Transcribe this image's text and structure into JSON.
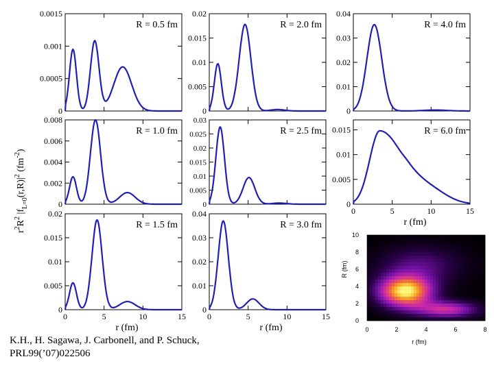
{
  "citation": {
    "line1": "K.H., H. Sagawa, J. Carbonell, and P. Schuck,",
    "line2": "PRL99(’07)022506"
  },
  "shared_axes": {
    "ylabel_html": "r²R² |f_L=0(r,R)|² (fm⁻²)",
    "ylabel_parts": [
      "r",
      "2",
      "R",
      "2",
      " |f",
      "L=0",
      "(r,R)|",
      "2",
      " (fm",
      "-2",
      ")"
    ],
    "xlabel": "r   (fm)",
    "xticks": [
      "0",
      "5",
      "10",
      "15"
    ]
  },
  "chart_data": [
    {
      "type": "line",
      "id": "R0.5",
      "label": "R = 0.5 fm",
      "xlim": [
        0,
        15
      ],
      "ylim": [
        0,
        0.0015
      ],
      "yticks": [
        "0",
        "0.0005",
        "0.001",
        "0.0015"
      ],
      "series": [
        {
          "name": "r2R2f2",
          "peaks": [
            [
              1.0,
              0.00095,
              0.45
            ],
            [
              3.8,
              0.00108,
              0.55
            ],
            [
              7.4,
              0.00068,
              1.15
            ]
          ]
        }
      ],
      "color": "#1f1fb4"
    },
    {
      "type": "line",
      "id": "R2.0",
      "label": "R = 2.0 fm",
      "xlim": [
        0,
        15
      ],
      "ylim": [
        0,
        0.02
      ],
      "yticks": [
        "0",
        "0.005",
        "0.01",
        "0.015",
        "0.02"
      ],
      "series": [
        {
          "name": "r2R2f2",
          "peaks": [
            [
              1.1,
              0.0097,
              0.45
            ],
            [
              4.6,
              0.0178,
              0.75
            ],
            [
              8.8,
              0.0003,
              0.9
            ]
          ]
        }
      ],
      "color": "#1f1fb4"
    },
    {
      "type": "line",
      "id": "R4.0",
      "label": "R = 4.0 fm",
      "xlim": [
        0,
        15
      ],
      "ylim": [
        0,
        0.04
      ],
      "yticks": [
        "0",
        "0.01",
        "0.02",
        "0.03",
        "0.04"
      ],
      "series": [
        {
          "name": "r2R2f2",
          "peaks": [
            [
              2.7,
              0.0355,
              0.95
            ],
            [
              10.5,
              0.0004,
              1.5
            ]
          ]
        }
      ],
      "color": "#1f1fb4"
    },
    {
      "type": "line",
      "id": "R1.0",
      "label": "R = 1.0 fm",
      "xlim": [
        0,
        15
      ],
      "ylim": [
        0,
        0.008
      ],
      "yticks": [
        "0",
        "0.002",
        "0.004",
        "0.006",
        "0.008"
      ],
      "series": [
        {
          "name": "r2R2f2",
          "peaks": [
            [
              1.0,
              0.0026,
              0.45
            ],
            [
              3.9,
              0.008,
              0.65
            ],
            [
              8.0,
              0.0011,
              1.0
            ]
          ]
        }
      ],
      "color": "#1f1fb4"
    },
    {
      "type": "line",
      "id": "R2.5",
      "label": "R = 2.5 fm",
      "xlim": [
        0,
        15
      ],
      "ylim": [
        0,
        0.03
      ],
      "yticks": [
        "0",
        "0.005",
        "0.01",
        "0.015",
        "0.02",
        "0.025",
        "0.03"
      ],
      "series": [
        {
          "name": "r2R2f2",
          "peaks": [
            [
              1.4,
              0.0275,
              0.55
            ],
            [
              5.1,
              0.0095,
              0.75
            ],
            [
              9.0,
              0.0004,
              0.9
            ]
          ]
        }
      ],
      "color": "#1f1fb4"
    },
    {
      "type": "line",
      "id": "R6.0",
      "label": "R = 6.0 fm",
      "xlim": [
        0,
        15
      ],
      "ylim": [
        0,
        0.017
      ],
      "yticks": [
        "0",
        "0.005",
        "0.01",
        "0.015"
      ],
      "series": [
        {
          "name": "r2R2f2",
          "skewed": {
            "peak_x": 3.4,
            "peak_y": 0.0148,
            "rise": 1.3,
            "fall": 3.2
          }
        }
      ],
      "color": "#1f1fb4"
    },
    {
      "type": "line",
      "id": "R1.5",
      "label": "R = 1.5 fm",
      "xlim": [
        0,
        15
      ],
      "ylim": [
        0,
        0.02
      ],
      "yticks": [
        "0",
        "0.005",
        "0.01",
        "0.015",
        "0.02"
      ],
      "series": [
        {
          "name": "r2R2f2",
          "peaks": [
            [
              1.0,
              0.0056,
              0.45
            ],
            [
              4.1,
              0.0187,
              0.65
            ],
            [
              8.0,
              0.0017,
              1.0
            ]
          ]
        }
      ],
      "color": "#1f1fb4"
    },
    {
      "type": "line",
      "id": "R3.0",
      "label": "R = 3.0 fm",
      "xlim": [
        0,
        15
      ],
      "ylim": [
        0,
        0.04
      ],
      "yticks": [
        "0",
        "0.01",
        "0.02",
        "0.03",
        "0.04"
      ],
      "series": [
        {
          "name": "r2R2f2",
          "peaks": [
            [
              1.8,
              0.037,
              0.65
            ],
            [
              5.6,
              0.0045,
              0.8
            ]
          ]
        }
      ],
      "color": "#1f1fb4"
    },
    {
      "type": "heatmap",
      "id": "density-map",
      "xlabel": "r  (fm)",
      "ylabel": "R  (fm)",
      "xlim": [
        0,
        8
      ],
      "ylim": [
        0,
        10
      ],
      "xticks": [
        "0",
        "2",
        "4",
        "6",
        "8"
      ],
      "yticks": [
        "0",
        "2",
        "4",
        "6",
        "8",
        "10"
      ],
      "blobs": [
        {
          "r": 2.6,
          "R": 3.4,
          "amplitude": 1.0,
          "sr": 1.3,
          "sR": 1.3
        },
        {
          "r": 5.4,
          "R": 1.3,
          "amplitude": 0.55,
          "sr": 1.5,
          "sR": 0.7
        }
      ]
    }
  ]
}
